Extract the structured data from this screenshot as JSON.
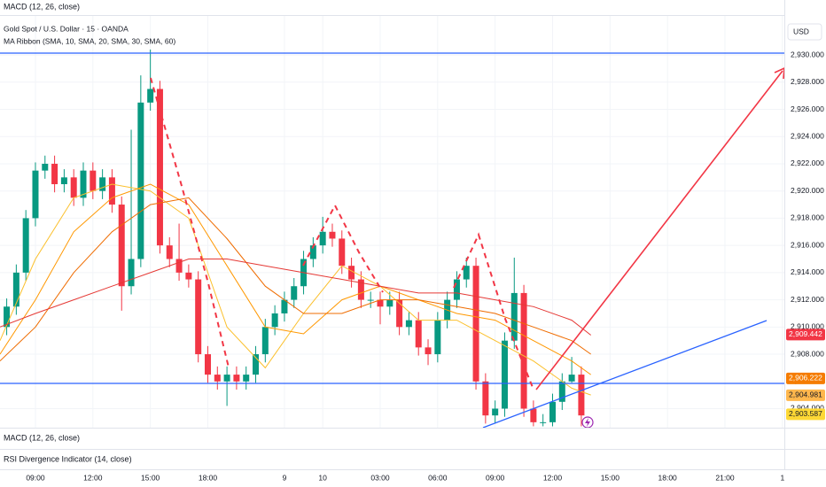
{
  "chart_data": {
    "type": "candlestick",
    "title": "Gold Spot / U.S. Dollar · 15 · OANDA",
    "subtitle": "MA Ribbon (SMA, 10, SMA, 20, SMA, 30, SMA, 60)",
    "currency": "USD",
    "indicators": [
      "MACD (12, 26, close)",
      "RSI Divergence Indicator (14, close)"
    ],
    "colors": {
      "up": "#089981",
      "down": "#f23645"
    },
    "grid": true,
    "x": [
      -1.5,
      -1,
      -0.5,
      0,
      0.5,
      1,
      1.5,
      2,
      2.5,
      3,
      3.5,
      4,
      4.5,
      5,
      5.5,
      6,
      6.5,
      7,
      7.5,
      8,
      8.5,
      9,
      9.5,
      10,
      10.5,
      11,
      11.5,
      12,
      12.5,
      13,
      13.5,
      14,
      14.5,
      15,
      15.5,
      16,
      16.5,
      17,
      17.5,
      18,
      18.5,
      19,
      19.5,
      20,
      20.5,
      21,
      21.5,
      22,
      22.5,
      23,
      23.5,
      24,
      24.5,
      25,
      25.5,
      26,
      26.5,
      27,
      27.5,
      28,
      28.5
    ],
    "open": [
      2910,
      2911.5,
      2914,
      2918,
      2921.5,
      2922,
      2920.5,
      2921,
      2919.5,
      2921.5,
      2920,
      2921,
      2919,
      2913,
      2915,
      2926.5,
      2927.5,
      2916,
      2915,
      2914,
      2913.5,
      2908,
      2906.5,
      2906,
      2906.5,
      2906,
      2906.5,
      2908,
      2910,
      2911,
      2912,
      2913,
      2915,
      2916,
      2917,
      2916.5,
      2914.5,
      2913.5,
      2912,
      2912,
      2911.5,
      2912,
      2910,
      2910.5,
      2908.5,
      2908,
      2910.5,
      2912,
      2913.5,
      2914.5,
      2906,
      2903.5,
      2904,
      2909,
      2912.5,
      2904,
      2903,
      2903,
      2904.5,
      2906,
      2906.5
    ],
    "high": [
      2912.1,
      2914.6,
      2918.6,
      2922.1,
      2922.6,
      2922.6,
      2921.6,
      2921.6,
      2922.1,
      2922.1,
      2921.6,
      2921.6,
      2919.6,
      2924.5,
      2928.5,
      2930.4,
      2928.1,
      2916.6,
      2917.6,
      2914.6,
      2914.1,
      2908.6,
      2907.1,
      2907.1,
      2907.1,
      2907.1,
      2908.6,
      2910.6,
      2911.6,
      2912.6,
      2913.6,
      2915.6,
      2916.6,
      2918.1,
      2917.6,
      2917.1,
      2915.1,
      2914.1,
      2912.6,
      2912.6,
      2912.6,
      2912.6,
      2911.1,
      2911.1,
      2909.1,
      2911.1,
      2912.6,
      2914.1,
      2915.1,
      2915.1,
      2906.6,
      2904.6,
      2909.6,
      2915.1,
      2913.1,
      2904.6,
      2903.6,
      2905.1,
      2906.6,
      2907.8,
      2907.1
    ],
    "low": [
      2909.4,
      2910.9,
      2913.4,
      2917.4,
      2920.9,
      2919.9,
      2919.9,
      2918.9,
      2918.9,
      2919.4,
      2919.4,
      2918.4,
      2911.2,
      2912.4,
      2914.4,
      2925.9,
      2915.4,
      2914.4,
      2913.4,
      2912.9,
      2907.4,
      2905.9,
      2905.4,
      2904.2,
      2905.4,
      2905.4,
      2905.9,
      2907.4,
      2909.4,
      2910.4,
      2911.4,
      2912.4,
      2914.4,
      2915.4,
      2915.9,
      2913.9,
      2912.9,
      2911.4,
      2911.4,
      2910.2,
      2910.9,
      2909.4,
      2909.4,
      2907.9,
      2907.2,
      2907.4,
      2909.9,
      2911.4,
      2912.9,
      2905.4,
      2902.9,
      2902.9,
      2903.4,
      2908.4,
      2903.4,
      2902.7,
      2902.7,
      2902.7,
      2903.9,
      2905.9,
      2902.7
    ],
    "close": [
      2911.5,
      2914,
      2918,
      2921.5,
      2922,
      2920.5,
      2921,
      2919.5,
      2921.5,
      2920,
      2921,
      2919,
      2913,
      2915,
      2926.5,
      2927.5,
      2916,
      2915,
      2914,
      2913.5,
      2908,
      2906.5,
      2906,
      2906.5,
      2906,
      2906.5,
      2908,
      2910,
      2911,
      2912,
      2913,
      2915,
      2916,
      2917,
      2916.5,
      2914.5,
      2913.5,
      2912,
      2912,
      2911.5,
      2912,
      2910,
      2910.5,
      2908.5,
      2908,
      2910.5,
      2912,
      2913.5,
      2914.5,
      2906,
      2903.5,
      2904,
      2909,
      2912.5,
      2904,
      2903,
      2903,
      2904.5,
      2906,
      2906.5,
      2903.5
    ],
    "ma_lines": [
      {
        "color": "#fbc02d",
        "x": [
          -1.85,
          0,
          2,
          4,
          6,
          8,
          10,
          12,
          14,
          16,
          18,
          20,
          22,
          24,
          26,
          28,
          29
        ],
        "values": [
          2909,
          2915,
          2919.5,
          2920.5,
          2920,
          2918,
          2910,
          2907,
          2911,
          2914.5,
          2913,
          2910.5,
          2910.5,
          2909,
          2907.5,
          2905.5,
          2905
        ]
      },
      {
        "color": "#ff9800",
        "x": [
          -1.85,
          0,
          2,
          4,
          6,
          8,
          10,
          12,
          14,
          16,
          18,
          20,
          22,
          24,
          26,
          28,
          29
        ],
        "values": [
          2908,
          2912,
          2917,
          2919.5,
          2920.5,
          2919,
          2914.5,
          2910,
          2909.5,
          2912,
          2913,
          2912,
          2911,
          2910.5,
          2909,
          2907.5,
          2906.5
        ]
      },
      {
        "color": "#ef6c00",
        "x": [
          -1.85,
          0,
          2,
          4,
          6,
          8,
          10,
          12,
          14,
          16,
          18,
          20,
          22,
          24,
          26,
          28,
          29
        ],
        "values": [
          2907.5,
          2910,
          2914,
          2917,
          2919,
          2919.5,
          2916.5,
          2913,
          2911,
          2911,
          2912,
          2912,
          2911.5,
          2911,
          2910,
          2909,
          2908
        ]
      },
      {
        "color": "#e53935",
        "x": [
          -1.85,
          0,
          2,
          4,
          6,
          8,
          10,
          12,
          14,
          16,
          18,
          20,
          22,
          24,
          26,
          28,
          29
        ],
        "values": [
          2910,
          2911,
          2912,
          2913,
          2914,
          2915,
          2915,
          2914.5,
          2914,
          2913.5,
          2913,
          2912.5,
          2912.5,
          2912,
          2911.5,
          2910.5,
          2909.4
        ]
      }
    ],
    "xlim": [
      -1.85,
      39.1
    ],
    "xticks": [
      {
        "value": 0,
        "label": "09:00"
      },
      {
        "value": 3,
        "label": "12:00"
      },
      {
        "value": 6,
        "label": "15:00"
      },
      {
        "value": 9,
        "label": "18:00"
      },
      {
        "value": 13,
        "label": "9"
      },
      {
        "value": 15,
        "label": "10"
      },
      {
        "value": 18,
        "label": "03:00"
      },
      {
        "value": 21,
        "label": "06:00"
      },
      {
        "value": 24,
        "label": "09:00"
      },
      {
        "value": 27,
        "label": "12:00"
      },
      {
        "value": 30,
        "label": "15:00"
      },
      {
        "value": 33,
        "label": "18:00"
      },
      {
        "value": 36,
        "label": "21:00"
      },
      {
        "value": 39,
        "label": "1"
      }
    ],
    "ylim": [
      2902.6,
      2934.04
    ],
    "yticks": [
      {
        "value": 2904,
        "label": "2,904.000"
      },
      {
        "value": 2906,
        "label": "2,906.000"
      },
      {
        "value": 2908,
        "label": "2,908.000"
      },
      {
        "value": 2910,
        "label": "2,910.000"
      },
      {
        "value": 2912,
        "label": "2,912.000"
      },
      {
        "value": 2914,
        "label": "2,914.000"
      },
      {
        "value": 2916,
        "label": "2,916.000"
      },
      {
        "value": 2918,
        "label": "2,918.000"
      },
      {
        "value": 2920,
        "label": "2,920.000"
      },
      {
        "value": 2922,
        "label": "2,922.000"
      },
      {
        "value": 2924,
        "label": "2,924.000"
      },
      {
        "value": 2926,
        "label": "2,926.000"
      },
      {
        "value": 2928,
        "label": "2,928.000"
      },
      {
        "value": 2930,
        "label": "2,930.000"
      }
    ],
    "price_labels": [
      {
        "value": 2909.442,
        "label": "2,909.442",
        "color": "#f23645",
        "text_color": "#ffffff"
      },
      {
        "value": 2906.222,
        "label": "2,906.222",
        "color": "#f57c00",
        "text_color": "#ffffff"
      },
      {
        "value": 2904.981,
        "label": "2,904.981",
        "color": "#ffb74d",
        "text_color": "#131722"
      },
      {
        "value": 2903.587,
        "label": "2,903.587",
        "color": "#fdd835",
        "text_color": "#131722"
      }
    ]
  }
}
